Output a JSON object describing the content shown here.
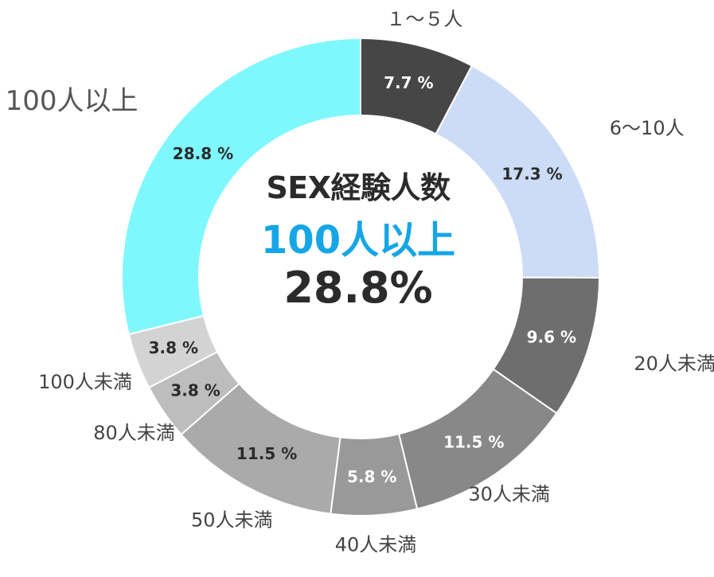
{
  "chart_data": {
    "type": "pie",
    "donut": true,
    "categories": [
      "１～５人",
      "6～10人",
      "20人未満",
      "30人未満",
      "40人未満",
      "50人未満",
      "80人未満",
      "100人未満",
      "100人以上"
    ],
    "values": [
      7.7,
      17.3,
      9.6,
      11.5,
      5.8,
      11.5,
      3.8,
      3.8,
      28.8
    ],
    "data_labels": [
      "7.7 %",
      "17.3 %",
      "9.6 %",
      "11.5 %",
      "5.8 %",
      "11.5 %",
      "3.8 %",
      "3.8 %",
      "28.8 %"
    ],
    "colors": [
      "#464646",
      "#ccdcf6",
      "#6e6e6e",
      "#888888",
      "#999999",
      "#aaaaaa",
      "#bdbdbd",
      "#d3d3d3",
      "#7ff8fd"
    ],
    "highlighted_category": "100人以上"
  },
  "center": {
    "title": "SEX経験人数",
    "highlight_label": "100人以上",
    "highlight_value": "28.8%"
  },
  "colors": {
    "highlight_text": "#16a6e6",
    "center_text": "#2b2b2b",
    "outer_label_text": "#444444",
    "highlight_outer_label_text": "#555555"
  }
}
